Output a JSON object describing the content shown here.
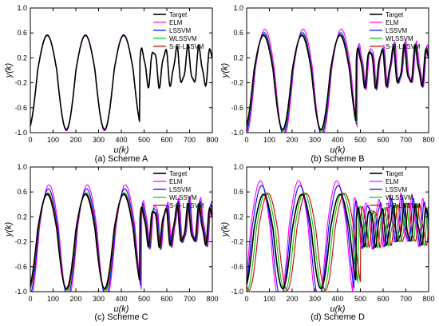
{
  "chart_data": [
    {
      "type": "line",
      "caption": "(a) Scheme A",
      "xlabel": "u(k)",
      "ylabel": "y(k)",
      "xlim": [
        0,
        800
      ],
      "ylim": [
        -1.0,
        1.0
      ],
      "xticks": [
        "0",
        "100",
        "200",
        "300",
        "400",
        "500",
        "600",
        "700",
        "800"
      ],
      "yticks": [
        "-1.0",
        "-0.6",
        "-0.2",
        "0.2",
        "0.6",
        "1.0"
      ],
      "legend": [
        "Target",
        "ELM",
        "LSSVM",
        "WLSSVM",
        "S-R-LSSVM"
      ],
      "legend_position": "top-right",
      "series": [
        {
          "name": "Target",
          "color": "#000000",
          "phase_shift": 0,
          "amp_scale": 1.0,
          "offset": 0
        },
        {
          "name": "ELM",
          "color": "#ff00ff",
          "phase_shift": 0,
          "amp_scale": 1.02,
          "offset": 0
        },
        {
          "name": "LSSVM",
          "color": "#0000ff",
          "phase_shift": 0,
          "amp_scale": 1.01,
          "offset": 0
        },
        {
          "name": "WLSSVM",
          "color": "#00c800",
          "phase_shift": 0,
          "amp_scale": 1.0,
          "offset": 0
        },
        {
          "name": "S-R-LSSVM",
          "color": "#cc0000",
          "phase_shift": 0,
          "amp_scale": 1.0,
          "offset": 0
        }
      ]
    },
    {
      "type": "line",
      "caption": "(b) Scheme B",
      "xlabel": "u(k)",
      "ylabel": "y(k)",
      "xlim": [
        0,
        800
      ],
      "ylim": [
        -1.0,
        1.0
      ],
      "xticks": [
        "0",
        "100",
        "200",
        "300",
        "400",
        "500",
        "600",
        "700",
        "800"
      ],
      "yticks": [
        "-1.0",
        "-0.6",
        "-0.2",
        "0.2",
        "0.6",
        "1.0"
      ],
      "legend": [
        "Target",
        "ELM",
        "LSSVM",
        "WLSSVM",
        "S-R-LSSVM"
      ],
      "legend_position": "top-right",
      "series": [
        {
          "name": "Target",
          "color": "#000000",
          "phase_shift": 0,
          "amp_scale": 1.0,
          "offset": 0
        },
        {
          "name": "ELM",
          "color": "#ff00ff",
          "phase_shift": 6,
          "amp_scale": 1.14,
          "offset": 0.02
        },
        {
          "name": "LSSVM",
          "color": "#0000ff",
          "phase_shift": 3,
          "amp_scale": 1.08,
          "offset": 0
        },
        {
          "name": "WLSSVM",
          "color": "#00c800",
          "phase_shift": 2,
          "amp_scale": 1.03,
          "offset": 0
        },
        {
          "name": "S-R-LSSVM",
          "color": "#cc0000",
          "phase_shift": 1,
          "amp_scale": 1.01,
          "offset": 0
        }
      ]
    },
    {
      "type": "line",
      "caption": "(c) Scheme C",
      "xlabel": "u(k)",
      "ylabel": "y(k)",
      "xlim": [
        0,
        800
      ],
      "ylim": [
        -1.0,
        1.0
      ],
      "xticks": [
        "0",
        "100",
        "200",
        "300",
        "400",
        "500",
        "600",
        "700",
        "800"
      ],
      "yticks": [
        "-1.0",
        "-0.6",
        "-0.2",
        "0.2",
        "0.6",
        "1.0"
      ],
      "legend": [
        "Target",
        "ELM",
        "LSSVM",
        "WLSSVM",
        "S-R-LSSVM"
      ],
      "legend_position": "top-right",
      "series": [
        {
          "name": "Target",
          "color": "#000000",
          "phase_shift": 0,
          "amp_scale": 1.0,
          "offset": 0
        },
        {
          "name": "ELM",
          "color": "#ff00ff",
          "phase_shift": 8,
          "amp_scale": 1.22,
          "offset": 0.03
        },
        {
          "name": "LSSVM",
          "color": "#0000ff",
          "phase_shift": 5,
          "amp_scale": 1.14,
          "offset": 0.01
        },
        {
          "name": "WLSSVM",
          "color": "#00c800",
          "phase_shift": 3,
          "amp_scale": 1.05,
          "offset": 0
        },
        {
          "name": "S-R-LSSVM",
          "color": "#cc0000",
          "phase_shift": 2,
          "amp_scale": 1.02,
          "offset": 0
        }
      ]
    },
    {
      "type": "line",
      "caption": "(d) Scheme D",
      "xlabel": "u(k)",
      "ylabel": "y(k)",
      "xlim": [
        0,
        800
      ],
      "ylim": [
        -1.0,
        1.0
      ],
      "xticks": [
        "0",
        "100",
        "200",
        "300",
        "400",
        "500",
        "600",
        "700",
        "800"
      ],
      "yticks": [
        "-1.0",
        "-0.6",
        "-0.2",
        "0.2",
        "0.6",
        "1.0"
      ],
      "legend": [
        "Target",
        "ELM",
        "LSSVM",
        "WLSSVM",
        "S-R-LSSVM"
      ],
      "legend_position": "top-right",
      "series": [
        {
          "name": "Target",
          "color": "#000000",
          "phase_shift": 0,
          "amp_scale": 1.0,
          "offset": 0
        },
        {
          "name": "ELM",
          "color": "#ff00ff",
          "phase_shift": -14,
          "amp_scale": 1.3,
          "offset": 0.05
        },
        {
          "name": "LSSVM",
          "color": "#0000ff",
          "phase_shift": -8,
          "amp_scale": 1.2,
          "offset": 0.03
        },
        {
          "name": "WLSSVM",
          "color": "#00c800",
          "phase_shift": 10,
          "amp_scale": 1.05,
          "offset": 0
        },
        {
          "name": "S-R-LSSVM",
          "color": "#cc0000",
          "phase_shift": 20,
          "amp_scale": 1.03,
          "offset": 0
        }
      ]
    }
  ]
}
